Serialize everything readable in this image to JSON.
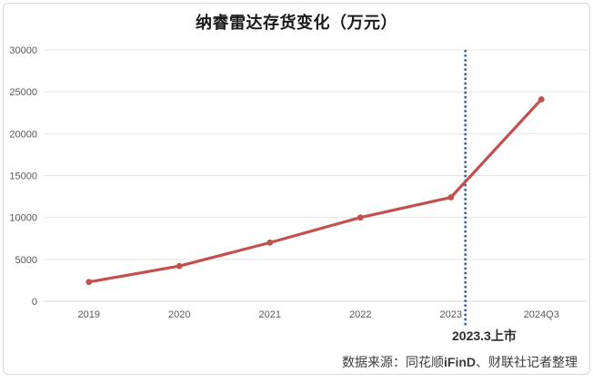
{
  "title": "纳睿雷达存货变化（万元）",
  "chart_data": {
    "type": "line",
    "title": "纳睿雷达存货变化（万元）",
    "categories": [
      "2019",
      "2020",
      "2021",
      "2022",
      "2023",
      "2024Q3"
    ],
    "series": [
      {
        "name": "存货",
        "values": [
          2300,
          4200,
          7000,
          10000,
          12400,
          24100
        ]
      }
    ],
    "xlabel": "",
    "ylabel": "",
    "ylim": [
      0,
      30000
    ],
    "yticks": [
      0,
      5000,
      10000,
      15000,
      20000,
      25000,
      30000
    ],
    "grid": true,
    "legend": "none",
    "line_color": "#c4504e",
    "marker": "circle",
    "annotation_line": {
      "label": "2023.3上市",
      "x_index": 4.16,
      "color": "#2e6096",
      "style": "dotted"
    }
  },
  "source": {
    "prefix": "数据来源：同花顺",
    "highlight": "iFinD",
    "suffix": "、财联社记者整理"
  },
  "colors": {
    "grid": "#e4e4e4",
    "axis": "#d6d6d6",
    "tick_text": "#595959",
    "frame_border": "#d9d9d9"
  }
}
